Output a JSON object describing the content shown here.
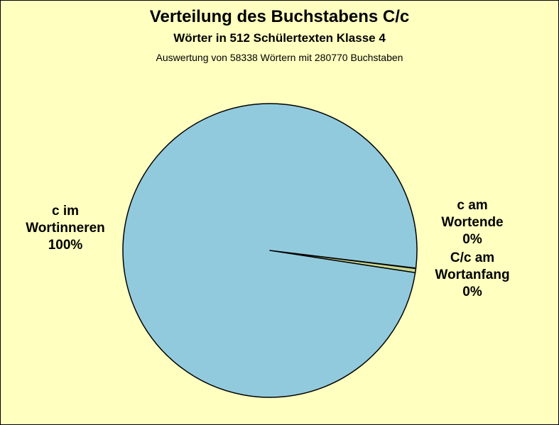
{
  "chart_data": {
    "type": "pie",
    "title": "Verteilung des Buchstabens C/c",
    "subtitle": "Wörter in 512 Schülertexten Klasse 4",
    "subtitle2": "Auswertung von 58338 Wörtern mit 280770 Buchstaben",
    "slices": [
      {
        "label_lines": [
          "c am",
          "Wortende",
          "0%"
        ],
        "value": 0.05,
        "color": "#b8cc8c"
      },
      {
        "label_lines": [
          "C/c am",
          "Wortanfang",
          "0%"
        ],
        "value": 0.45,
        "color": "#c8d890"
      },
      {
        "label_lines": [
          "c im",
          "Wortinneren",
          "100%"
        ],
        "value": 99.5,
        "color": "#92cadd"
      }
    ],
    "background": "#ffffc0"
  }
}
